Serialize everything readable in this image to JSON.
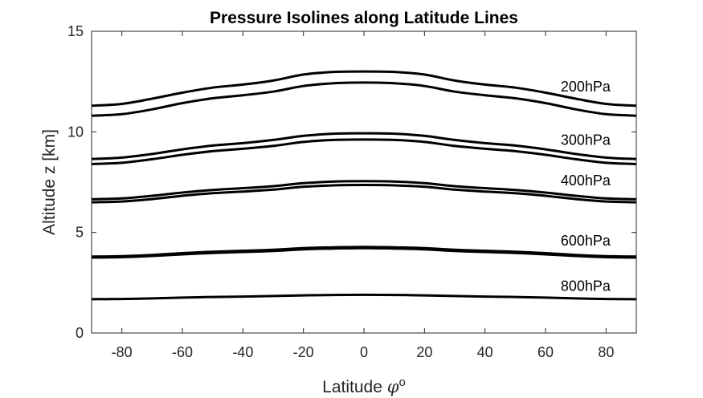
{
  "chart_data": {
    "type": "line",
    "title": "Pressure Isolines along Latitude Lines",
    "xlabel": "Latitude ",
    "xlabel_symbol": "φ",
    "xlabel_superscript": "o",
    "ylabel": "Altitude z [km]",
    "xlim": [
      -90,
      90
    ],
    "ylim": [
      0,
      15
    ],
    "xticks": [
      -80,
      -60,
      -40,
      -20,
      0,
      20,
      40,
      60,
      80
    ],
    "yticks": [
      0,
      5,
      10,
      15
    ],
    "grid": false,
    "legend": "none",
    "line_color": "#000000",
    "x": [
      -90,
      -80,
      -70,
      -60,
      -50,
      -40,
      -30,
      -20,
      -10,
      0,
      10,
      20,
      30,
      40,
      50,
      60,
      70,
      80,
      90
    ],
    "series": [
      {
        "values": [
          11.3,
          11.39,
          11.65,
          11.95,
          12.2,
          12.35,
          12.55,
          12.85,
          12.98,
          13.0,
          12.98,
          12.85,
          12.55,
          12.35,
          12.2,
          11.95,
          11.65,
          11.39,
          11.3
        ]
      },
      {
        "values": [
          10.8,
          10.88,
          11.12,
          11.43,
          11.67,
          11.82,
          12.0,
          12.28,
          12.42,
          12.45,
          12.42,
          12.28,
          12.0,
          11.82,
          11.67,
          11.43,
          11.12,
          10.88,
          10.8
        ]
      },
      {
        "values": [
          8.65,
          8.72,
          8.9,
          9.13,
          9.32,
          9.44,
          9.6,
          9.8,
          9.91,
          9.93,
          9.91,
          9.8,
          9.6,
          9.44,
          9.32,
          9.13,
          8.9,
          8.72,
          8.65
        ]
      },
      {
        "values": [
          8.4,
          8.46,
          8.64,
          8.86,
          9.04,
          9.16,
          9.3,
          9.5,
          9.6,
          9.62,
          9.6,
          9.5,
          9.3,
          9.16,
          9.04,
          8.86,
          8.64,
          8.46,
          8.4
        ]
      },
      {
        "values": [
          6.65,
          6.69,
          6.82,
          6.98,
          7.11,
          7.2,
          7.3,
          7.45,
          7.53,
          7.55,
          7.53,
          7.45,
          7.3,
          7.2,
          7.11,
          6.98,
          6.82,
          6.69,
          6.65
        ]
      },
      {
        "values": [
          6.5,
          6.54,
          6.66,
          6.82,
          6.95,
          7.03,
          7.13,
          7.27,
          7.34,
          7.36,
          7.34,
          7.27,
          7.13,
          7.03,
          6.95,
          6.82,
          6.66,
          6.54,
          6.5
        ]
      },
      {
        "values": [
          3.8,
          3.82,
          3.88,
          3.97,
          4.04,
          4.09,
          4.14,
          4.22,
          4.26,
          4.28,
          4.26,
          4.22,
          4.14,
          4.09,
          4.04,
          3.97,
          3.88,
          3.82,
          3.8
        ]
      },
      {
        "values": [
          3.75,
          3.77,
          3.83,
          3.91,
          3.98,
          4.03,
          4.08,
          4.16,
          4.2,
          4.22,
          4.2,
          4.16,
          4.08,
          4.03,
          3.98,
          3.91,
          3.83,
          3.77,
          3.75
        ]
      },
      {
        "values": [
          1.68,
          1.69,
          1.72,
          1.76,
          1.79,
          1.81,
          1.84,
          1.87,
          1.89,
          1.9,
          1.89,
          1.87,
          1.84,
          1.81,
          1.79,
          1.76,
          1.72,
          1.69,
          1.68
        ]
      }
    ],
    "annotations": [
      {
        "text": "200hPa",
        "x": 65,
        "y": 12.0
      },
      {
        "text": "300hPa",
        "x": 65,
        "y": 9.35
      },
      {
        "text": "400hPa",
        "x": 65,
        "y": 7.35
      },
      {
        "text": "600hPa",
        "x": 65,
        "y": 4.35
      },
      {
        "text": "800hPa",
        "x": 65,
        "y": 2.1
      }
    ]
  }
}
